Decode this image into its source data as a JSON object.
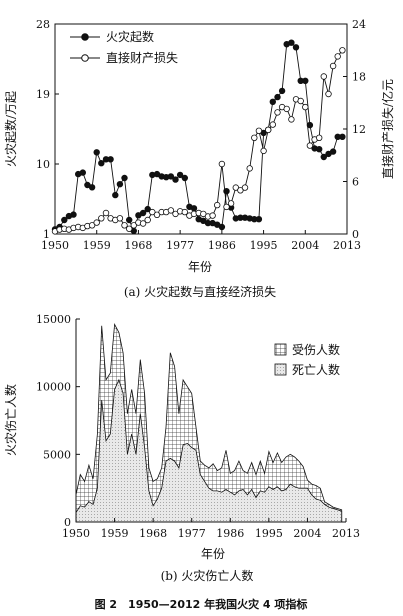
{
  "figure_caption": "图 2　1950—2012 年我国火灾 4 项指标",
  "chart_data": [
    {
      "type": "line",
      "caption": "(a) 火灾起数与直接经济损失",
      "xlabel": "年份",
      "ylabel_left": "火灾起数/万起",
      "ylabel_right": "直接财产损失/亿元",
      "x_ticks": [
        "1950",
        "1959",
        "1968",
        "1977",
        "1986",
        "1995",
        "2004",
        "2013"
      ],
      "y_left_ticks": [
        "1",
        "10",
        "19",
        "28"
      ],
      "y_right_ticks": [
        "0",
        "6",
        "12",
        "18",
        "24"
      ],
      "xlim": [
        1950,
        2013
      ],
      "ylim_left": [
        1,
        28
      ],
      "ylim_right": [
        0,
        24
      ],
      "grid": false,
      "legend_position": "top-left",
      "x": [
        1950,
        1951,
        1952,
        1953,
        1954,
        1955,
        1956,
        1957,
        1958,
        1959,
        1960,
        1961,
        1962,
        1963,
        1964,
        1965,
        1966,
        1967,
        1968,
        1969,
        1970,
        1971,
        1972,
        1973,
        1974,
        1975,
        1976,
        1977,
        1978,
        1979,
        1980,
        1981,
        1982,
        1983,
        1984,
        1985,
        1986,
        1987,
        1988,
        1989,
        1990,
        1991,
        1992,
        1993,
        1994,
        1995,
        1996,
        1997,
        1998,
        1999,
        2000,
        2001,
        2002,
        2003,
        2004,
        2005,
        2006,
        2007,
        2008,
        2009,
        2010,
        2011,
        2012
      ],
      "series": [
        {
          "name": "火灾起数",
          "axis": "left",
          "marker": "filled",
          "values": [
            1.6,
            1.9,
            2.8,
            3.3,
            3.5,
            8.7,
            8.9,
            7.3,
            7.0,
            11.5,
            10.1,
            10.6,
            10.6,
            6.0,
            7.4,
            8.2,
            2.8,
            1.4,
            3.4,
            3.7,
            4.2,
            8.6,
            8.7,
            8.4,
            8.3,
            8.4,
            8.0,
            8.6,
            8.2,
            4.5,
            4.3,
            2.9,
            2.7,
            2.4,
            2.4,
            2.2,
            1.9,
            6.5,
            4.4,
            3.0,
            3.1,
            3.1,
            3.0,
            2.9,
            2.9,
            14.0,
            14.4,
            18.0,
            18.6,
            19.4,
            25.4,
            25.6,
            25.0,
            20.7,
            20.7,
            15.0,
            12.0,
            11.9,
            10.9,
            11.3,
            11.6,
            13.5,
            13.5
          ]
        },
        {
          "name": "直接财产损失",
          "axis": "right",
          "marker": "open",
          "values": [
            0.3,
            0.5,
            0.6,
            0.5,
            0.7,
            0.8,
            0.7,
            0.9,
            1.0,
            1.3,
            1.8,
            2.4,
            1.8,
            1.6,
            1.8,
            1.0,
            0.6,
            1.0,
            1.3,
            1.2,
            1.6,
            2.5,
            2.2,
            2.5,
            2.5,
            2.7,
            2.3,
            2.6,
            2.5,
            2.1,
            2.3,
            2.4,
            2.3,
            2.0,
            2.1,
            3.3,
            8.0,
            3.1,
            3.5,
            5.3,
            5.0,
            5.3,
            7.5,
            11.0,
            11.8,
            9.5,
            11.9,
            12.5,
            13.9,
            14.5,
            14.3,
            13.1,
            15.4,
            15.2,
            14.5,
            10.1,
            10.8,
            11.0,
            18.0,
            16.0,
            19.2,
            20.3,
            21.0
          ]
        }
      ]
    },
    {
      "type": "area",
      "caption": "(b) 火灾伤亡人数",
      "xlabel": "年份",
      "ylabel": "火灾伤亡人数",
      "x_ticks": [
        "1950",
        "1959",
        "1968",
        "1977",
        "1986",
        "1995",
        "2004",
        "2013"
      ],
      "y_ticks": [
        "0",
        "5000",
        "10000",
        "15000"
      ],
      "xlim": [
        1950,
        2013
      ],
      "ylim": [
        0,
        15000
      ],
      "grid": false,
      "legend_position": "top-right",
      "x": [
        1950,
        1951,
        1952,
        1953,
        1954,
        1955,
        1956,
        1957,
        1958,
        1959,
        1960,
        1961,
        1962,
        1963,
        1964,
        1965,
        1966,
        1967,
        1968,
        1969,
        1970,
        1971,
        1972,
        1973,
        1974,
        1975,
        1976,
        1977,
        1978,
        1979,
        1980,
        1981,
        1982,
        1983,
        1984,
        1985,
        1986,
        1987,
        1988,
        1989,
        1990,
        1991,
        1992,
        1993,
        1994,
        1995,
        1996,
        1997,
        1998,
        1999,
        2000,
        2001,
        2002,
        2003,
        2004,
        2005,
        2006,
        2007,
        2008,
        2009,
        2010,
        2011,
        2012
      ],
      "series": [
        {
          "name": "受伤人数",
          "pattern": "crosshatch",
          "values": [
            2000,
            3500,
            3000,
            4200,
            3200,
            6500,
            14500,
            10500,
            11000,
            14600,
            14000,
            12500,
            8000,
            9800,
            8000,
            12000,
            9500,
            4000,
            3000,
            3200,
            4000,
            7000,
            12500,
            11500,
            8000,
            10500,
            10000,
            9500,
            7000,
            4500,
            4200,
            4000,
            4300,
            3800,
            4000,
            5300,
            3600,
            3800,
            4500,
            3800,
            3600,
            4400,
            3500,
            4500,
            3600,
            5200,
            4400,
            5100,
            4400,
            4800,
            5000,
            4800,
            4500,
            4100,
            3100,
            2800,
            2700,
            2500,
            1500,
            1300,
            1100,
            1000,
            900
          ]
        },
        {
          "name": "死亡人数",
          "pattern": "dotted",
          "values": [
            700,
            1200,
            1100,
            1500,
            1300,
            2500,
            9000,
            6000,
            6500,
            9800,
            10500,
            9500,
            5000,
            6500,
            5000,
            8000,
            5500,
            2300,
            1200,
            1700,
            2500,
            4500,
            4700,
            4500,
            4000,
            5700,
            5800,
            5500,
            5300,
            3500,
            3000,
            2500,
            2300,
            2300,
            2200,
            2400,
            2200,
            2000,
            2300,
            2400,
            2000,
            2400,
            1800,
            2300,
            2200,
            2600,
            2400,
            2600,
            2300,
            2400,
            2800,
            2600,
            2500,
            2500,
            2500,
            2000,
            1700,
            1600,
            1300,
            1100,
            1000,
            900,
            800
          ]
        }
      ]
    }
  ]
}
